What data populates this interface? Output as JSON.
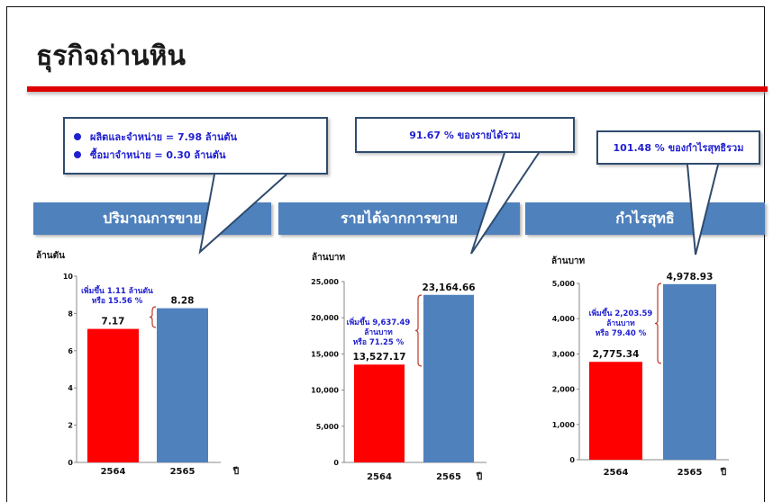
{
  "title": "ธุรกิจถ่านหิน",
  "colors": {
    "red": "#ff0000",
    "blue": "#4f81bd",
    "accent": "#e00000",
    "annotation": "#1f1fd1"
  },
  "callouts": {
    "volume": {
      "items": [
        "ผลิตและจำหน่าย = 7.98 ล้านตัน",
        "ซื้อมาจำหน่าย = 0.30 ล้านตัน"
      ]
    },
    "revenue": {
      "text": "91.67 % ของรายได้รวม"
    },
    "profit": {
      "text": "101.48 % ของกำไรสุทธิรวม"
    }
  },
  "bands": {
    "volume": "ปริมาณการขาย",
    "revenue": "รายได้จากการขาย",
    "profit": "กำไรสุทธิ"
  },
  "chart_data": [
    {
      "type": "bar",
      "unit": "ล้านตัน",
      "categories": [
        "2564",
        "2565"
      ],
      "xlabel": "ปี",
      "values": [
        7.17,
        8.28
      ],
      "value_labels": [
        "7.17",
        "8.28"
      ],
      "bar_colors": [
        "#ff0000",
        "#4f81bd"
      ],
      "ylim": [
        0,
        10
      ],
      "yticks": [
        0,
        2,
        4,
        6,
        8,
        10
      ],
      "ytick_labels": [
        "0",
        "2",
        "4",
        "6",
        "8",
        "10"
      ],
      "annotation": [
        "เพิ่มขึ้น 1.11 ล้านตัน",
        "หรือ 15.56 %"
      ]
    },
    {
      "type": "bar",
      "unit": "ล้านบาท",
      "categories": [
        "2564",
        "2565"
      ],
      "xlabel": "ปี",
      "values": [
        13527.17,
        23164.66
      ],
      "value_labels": [
        "13,527.17",
        "23,164.66"
      ],
      "bar_colors": [
        "#ff0000",
        "#4f81bd"
      ],
      "ylim": [
        0,
        25000
      ],
      "yticks": [
        0,
        5000,
        10000,
        15000,
        20000,
        25000
      ],
      "ytick_labels": [
        "0",
        "5,000",
        "10,000",
        "15,000",
        "20,000",
        "25,000"
      ],
      "annotation": [
        "เพิ่มขึ้น 9,637.49",
        "ล้านบาท",
        "หรือ 71.25 %"
      ]
    },
    {
      "type": "bar",
      "unit": "ล้านบาท",
      "categories": [
        "2564",
        "2565"
      ],
      "xlabel": "ปี",
      "values": [
        2775.34,
        4978.93
      ],
      "value_labels": [
        "2,775.34",
        "4,978.93"
      ],
      "bar_colors": [
        "#ff0000",
        "#4f81bd"
      ],
      "ylim": [
        0,
        5000
      ],
      "yticks": [
        0,
        1000,
        2000,
        3000,
        4000,
        5000
      ],
      "ytick_labels": [
        "0",
        "1,000",
        "2,000",
        "3,000",
        "4,000",
        "5,000"
      ],
      "annotation": [
        "เพิ่มขึ้น 2,203.59",
        "ล้านบาท",
        "หรือ 79.40 %"
      ]
    }
  ]
}
